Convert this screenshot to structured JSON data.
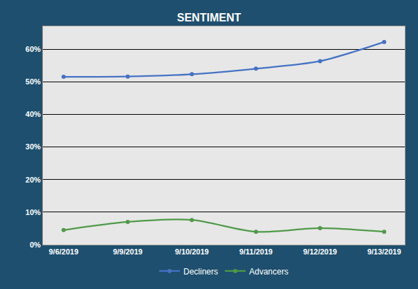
{
  "chart_data": {
    "type": "line",
    "title": "SENTIMENT",
    "categories": [
      "9/6/2019",
      "9/9/2019",
      "9/10/2019",
      "9/11/2019",
      "9/12/2019",
      "9/13/2019"
    ],
    "series": [
      {
        "name": "Decliners",
        "color": "#4472c4",
        "marker": "circle",
        "values": [
          51.5,
          51.6,
          52.3,
          54.0,
          56.3,
          62.2
        ]
      },
      {
        "name": "Advancers",
        "color": "#4e9a47",
        "marker": "circle",
        "values": [
          4.5,
          7.0,
          7.6,
          4.0,
          5.1,
          4.0
        ]
      }
    ],
    "ylim": [
      0,
      67
    ],
    "yticks": [
      {
        "value": 0,
        "label": "0%"
      },
      {
        "value": 10,
        "label": "10%"
      },
      {
        "value": 20,
        "label": "20%"
      },
      {
        "value": 30,
        "label": "30%"
      },
      {
        "value": 40,
        "label": "40%"
      },
      {
        "value": 50,
        "label": "50%"
      },
      {
        "value": 60,
        "label": "60%"
      }
    ],
    "grid": true,
    "legend": "bottom"
  }
}
